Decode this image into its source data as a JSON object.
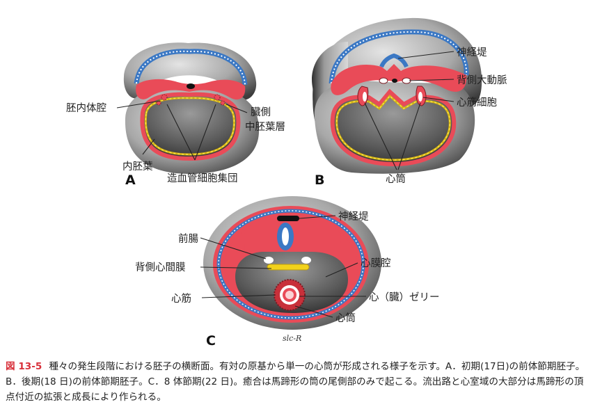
{
  "figure": {
    "panels": [
      "A",
      "B",
      "C"
    ],
    "signature": "slc-R",
    "labels": {
      "a_intraembryonic_coelom": "胚内体腔",
      "a_splanchnic_1": "臓側",
      "a_splanchnic_2": "中胚葉層",
      "a_endoderm": "内胚葉",
      "a_angiogenic_clusters": "造血管細胞集団",
      "b_neural_fold": "神経堤",
      "b_dorsal_aorta": "背側大動脈",
      "b_myocardial_cells": "心筋細胞",
      "b_heart_tube": "心筒",
      "c_neural_fold": "神経堤",
      "c_foregut": "前腸",
      "c_dorsal_mesocardium": "背側心間膜",
      "c_pericardial_cavity": "心膜腔",
      "c_myocardium": "心筋",
      "c_cardiac_jelly": "心（臓）ゼリー",
      "c_heart_tube": "心筒"
    }
  },
  "caption": {
    "label": "図 13-5",
    "text": "種々の発生段階における胚子の横断面。有対の原基から単一の心筒が形成される様子を示す。A．初期(17日)の前体節期胚子。B．後期(18 日)の前体節期胚子。C．8 体節期(22 日)。癒合は馬蹄形の筒の尾側部のみで起こる。流出路と心室域の大部分は馬蹄形の頂点付近の拡張と成長により作られる。"
  },
  "colors": {
    "ectoderm_blue": "#3b78c4",
    "mesoderm_red": "#e94b58",
    "endoderm_yellow": "#f2d21b",
    "caption_accent": "#d8303a"
  }
}
